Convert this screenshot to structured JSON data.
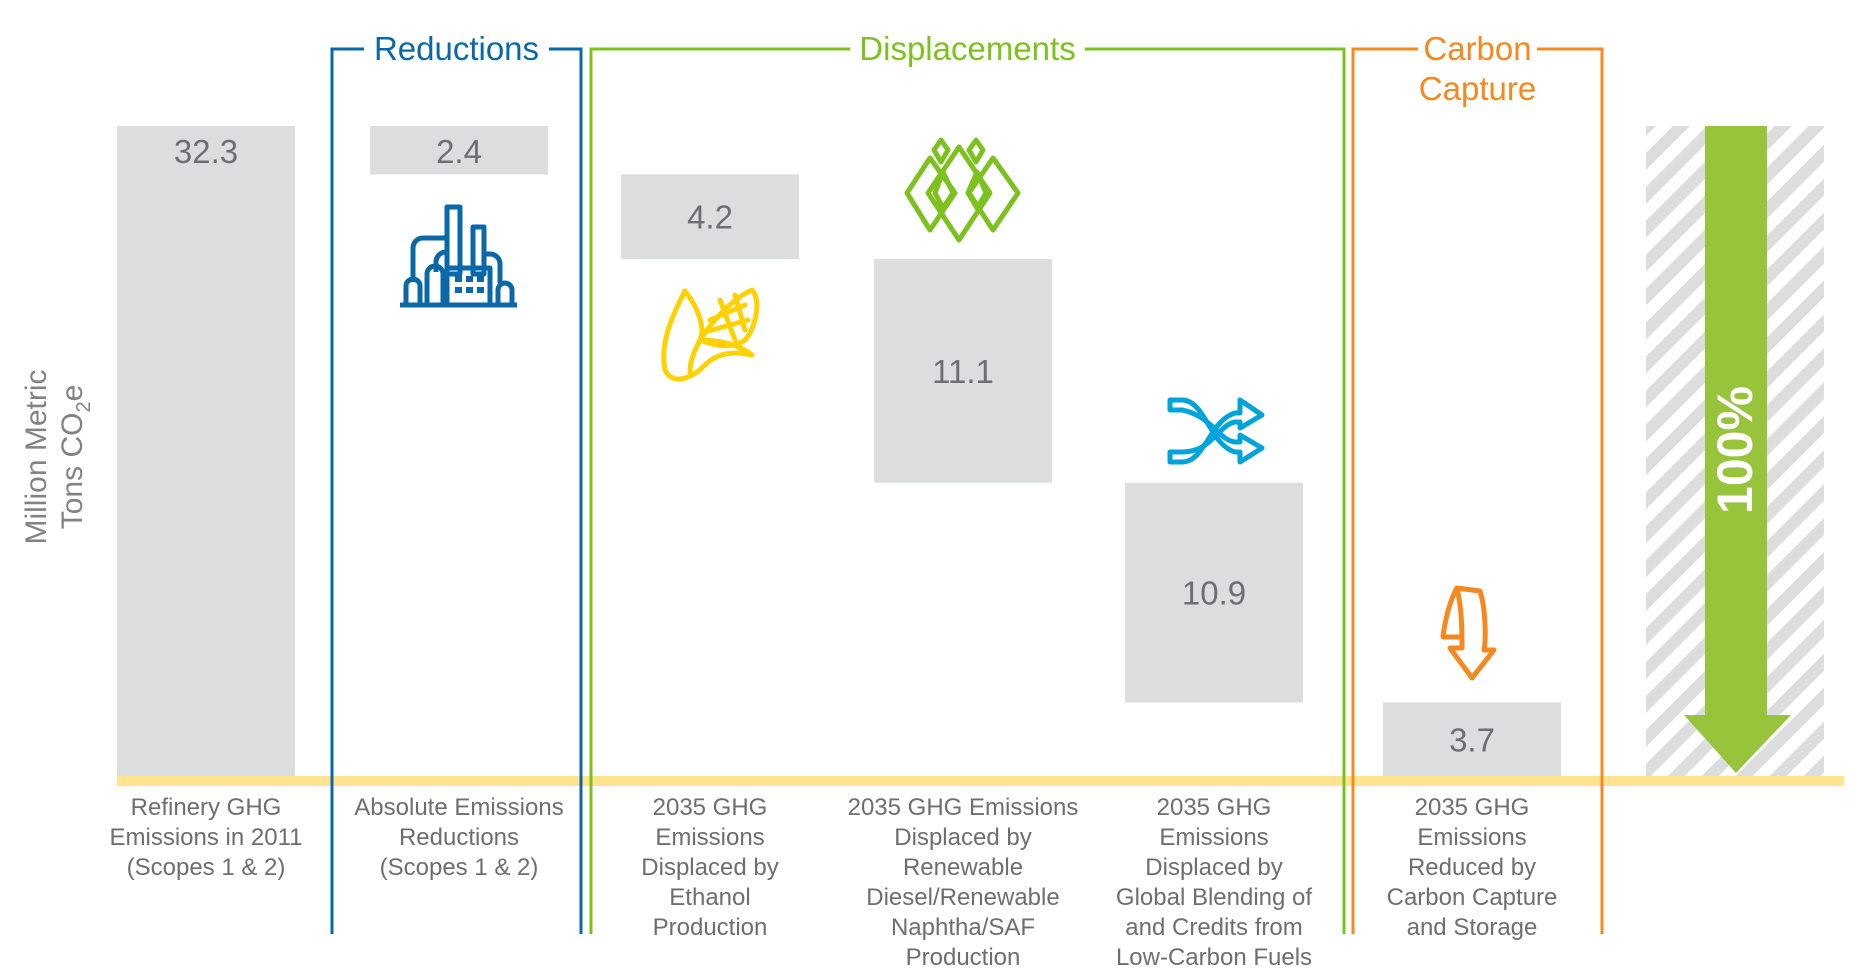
{
  "chart_data": {
    "type": "waterfall",
    "ylabel_lines": [
      "Million Metric",
      "Tons CO",
      "2",
      "e"
    ],
    "categories": [
      [
        "Refinery GHG",
        "Emissions in 2011",
        "(Scopes 1 & 2)"
      ],
      [
        "Absolute Emissions",
        "Reductions",
        "(Scopes 1 & 2)"
      ],
      [
        "2035 GHG",
        "Emissions",
        "Displaced by",
        "Ethanol",
        "Production"
      ],
      [
        "2035 GHG Emissions",
        "Displaced by",
        "Renewable",
        "Diesel/Renewable",
        "Naphtha/SAF",
        "Production"
      ],
      [
        "2035 GHG",
        "Emissions",
        "Displaced by",
        "Global Blending of",
        "and Credits from",
        "Low-Carbon Fuels"
      ],
      [
        "2035 GHG",
        "Emissions",
        "Reduced by",
        "Carbon Capture",
        "and Storage"
      ]
    ],
    "values": [
      32.3,
      2.4,
      4.2,
      11.1,
      10.9,
      3.7
    ],
    "value_labels": [
      "32.3",
      "2.4",
      "4.2",
      "11.1",
      "10.9",
      "3.7"
    ],
    "groups": [
      {
        "label_lines": [
          "Reductions"
        ],
        "color": "#0a68a8",
        "categories": [
          1
        ]
      },
      {
        "label_lines": [
          "Displacements"
        ],
        "color": "#7dc11f",
        "categories": [
          2,
          3,
          4
        ]
      },
      {
        "label_lines": [
          "Carbon",
          "Capture"
        ],
        "color": "#f5881f",
        "categories": [
          5
        ]
      }
    ],
    "total_arrow": {
      "label": "100%",
      "color": "#97c43a"
    },
    "icons": [
      "refinery-icon",
      "corn-icon",
      "renewable-diamonds-icon",
      "shuffle-arrows-icon",
      "carbon-capture-arrow-icon"
    ],
    "icon_colors": [
      "#0a68a8",
      "#ffd100",
      "#7dc11f",
      "#00a3da",
      "#f5881f"
    ],
    "bar_color": "#dcdddf",
    "baseline_color": "#ffe38f",
    "grid": false
  }
}
